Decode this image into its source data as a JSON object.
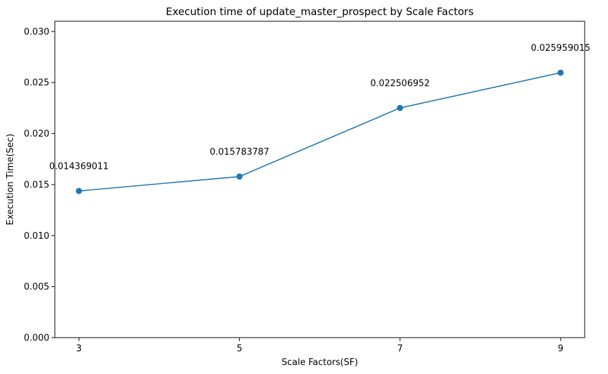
{
  "chart_data": {
    "type": "line",
    "title": "Execution time of update_master_prospect by Scale Factors",
    "xlabel": "Scale Factors(SF)",
    "ylabel": "Execution Time(Sec)",
    "x": [
      3,
      5,
      7,
      9
    ],
    "xticks": [
      "3",
      "5",
      "7",
      "9"
    ],
    "xlim": [
      2.7,
      9.3
    ],
    "ylim": [
      0,
      0.031
    ],
    "yticks": [
      "0.000",
      "0.005",
      "0.010",
      "0.015",
      "0.020",
      "0.025",
      "0.030"
    ],
    "series": [
      {
        "values": [
          0.014369011,
          0.015783787,
          0.022506952,
          0.025959015
        ],
        "labels": [
          "0.014369011",
          "0.015783787",
          "0.022506952",
          "0.025959015"
        ],
        "color": "#1f77b4",
        "marker": "circle"
      }
    ],
    "grid": false,
    "legend": "none"
  }
}
